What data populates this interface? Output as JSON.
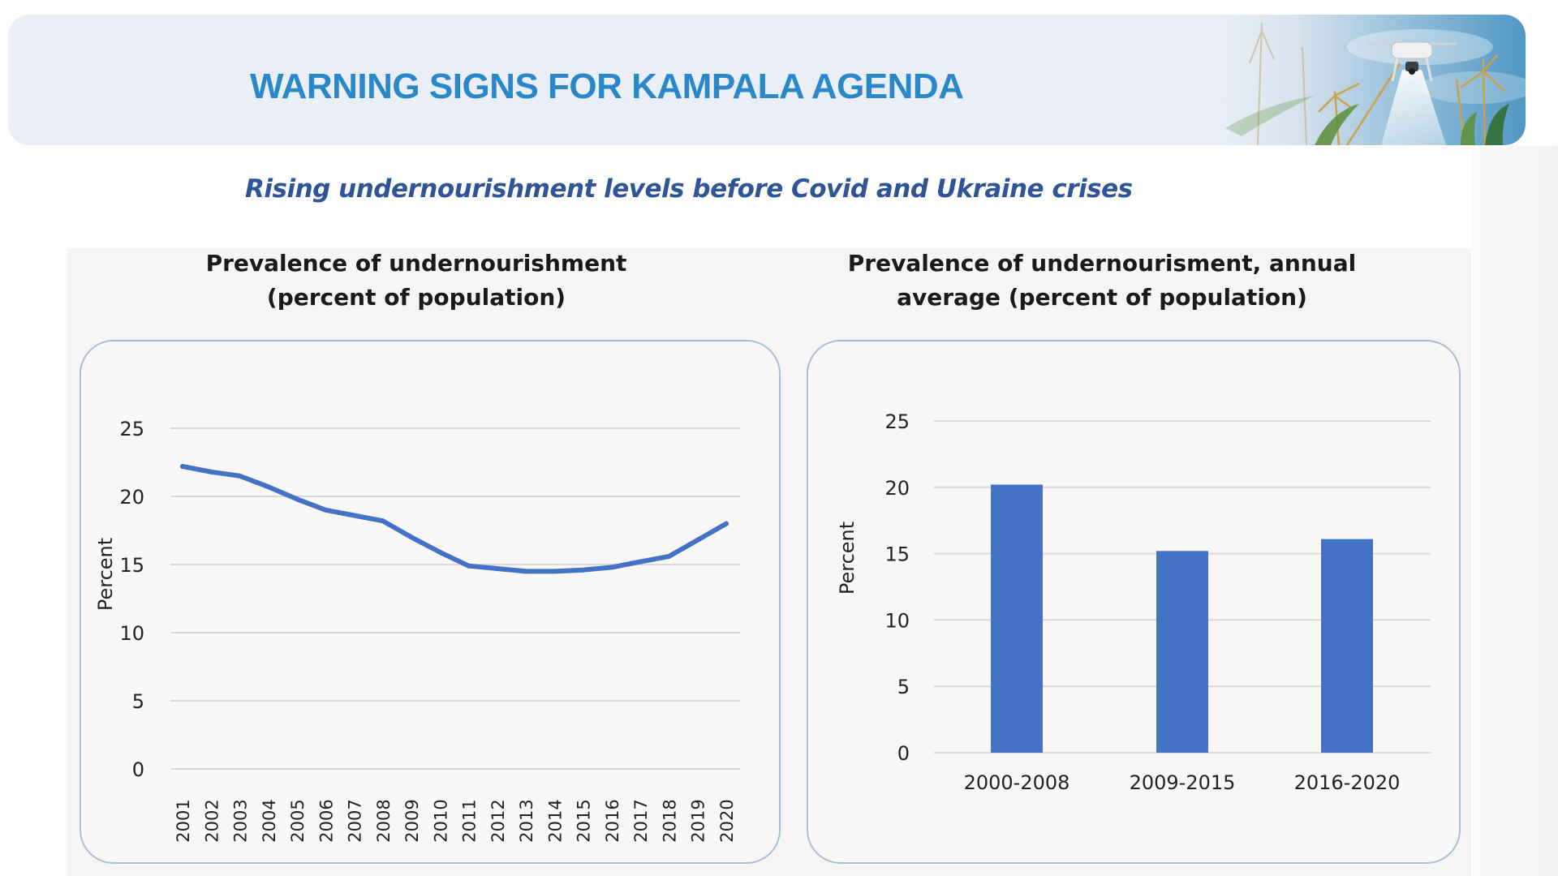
{
  "header": {
    "title": "WARNING SIGNS FOR KAMPALA AGENDA",
    "image_icon": "drone-over-maize-field-photo"
  },
  "subtitle": "Rising undernourishment levels before Covid and Ukraine crises",
  "colors": {
    "title": "#2a88c8",
    "subtitle": "#2f5597",
    "series": "#4472c4",
    "grid": "#d9d9d9"
  },
  "chart_data": [
    {
      "type": "line",
      "title_line1": "Prevalence of undernourishment",
      "title_line2": "(percent of population)",
      "xlabel": "",
      "ylabel": "Percent",
      "x": [
        "2001",
        "2002",
        "2003",
        "2004",
        "2005",
        "2006",
        "2007",
        "2008",
        "2009",
        "2010",
        "2011",
        "2012",
        "2013",
        "2014",
        "2015",
        "2016",
        "2017",
        "2018",
        "2019",
        "2020"
      ],
      "series": [
        {
          "name": "Prevalence of undernourishment",
          "values": [
            22.2,
            21.8,
            21.5,
            20.7,
            19.8,
            19.0,
            18.6,
            18.2,
            17.0,
            15.9,
            14.9,
            14.7,
            14.5,
            14.5,
            14.6,
            14.8,
            15.2,
            15.6,
            16.8,
            18.0
          ]
        }
      ],
      "ylim": [
        0,
        25
      ],
      "yticks": [
        "0",
        "5",
        "10",
        "15",
        "20",
        "25"
      ],
      "grid": true,
      "legend": "none"
    },
    {
      "type": "bar",
      "title_line1": "Prevalence of undernourisment, annual",
      "title_line2": "average (percent of population)",
      "xlabel": "",
      "ylabel": "Percent",
      "categories": [
        "2000-2008",
        "2009-2015",
        "2016-2020"
      ],
      "values": [
        20.2,
        15.2,
        16.1
      ],
      "ylim": [
        0,
        25
      ],
      "yticks": [
        "0",
        "5",
        "10",
        "15",
        "20",
        "25"
      ],
      "grid": true,
      "legend": "none"
    }
  ]
}
